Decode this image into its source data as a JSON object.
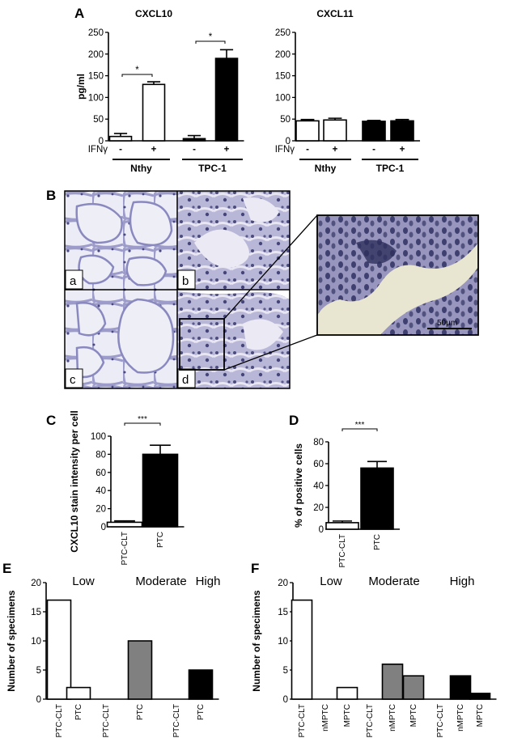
{
  "panel_labels": {
    "A": "A",
    "B": "B",
    "C": "C",
    "D": "D",
    "E": "E",
    "F": "F"
  },
  "micrograph": {
    "labels": [
      "a",
      "b",
      "c",
      "d"
    ],
    "scale_bar": "50µm",
    "colors": {
      "tissue": "#9d9dc9",
      "nucleus": "#3a3b6e",
      "background": "#e9e9f4",
      "stroma": "#c9c7e0"
    }
  },
  "chart_data": [
    {
      "id": "A-left",
      "type": "bar",
      "title": "CXCL10",
      "ylabel": "pg/ml",
      "ylim": [
        0,
        250
      ],
      "yticks": [
        0,
        50,
        100,
        150,
        200,
        250
      ],
      "categories": [
        "-",
        "+",
        "-",
        "+"
      ],
      "values": [
        10,
        130,
        5,
        190
      ],
      "errors": [
        7,
        6,
        7,
        20
      ],
      "fills": [
        "#ffffff",
        "#ffffff",
        "#000000",
        "#000000"
      ],
      "row_label": "IFNγ",
      "groups": [
        "Nthy",
        "TPC-1"
      ],
      "significance": "*"
    },
    {
      "id": "A-right",
      "type": "bar",
      "title": "CXCL11",
      "ylabel": "",
      "ylim": [
        0,
        250
      ],
      "yticks": [
        0,
        50,
        100,
        150,
        200,
        250
      ],
      "categories": [
        "-",
        "+",
        "-",
        "+"
      ],
      "values": [
        46,
        48,
        45,
        46
      ],
      "errors": [
        3,
        4,
        2,
        3
      ],
      "fills": [
        "#ffffff",
        "#ffffff",
        "#000000",
        "#000000"
      ],
      "row_label": "IFNγ",
      "groups": [
        "Nthy",
        "TPC-1"
      ]
    },
    {
      "id": "C",
      "type": "bar",
      "ylabel": "CXCL10 stain intensity per cell",
      "ylim": [
        0,
        100
      ],
      "yticks": [
        0,
        20,
        40,
        60,
        80,
        100
      ],
      "categories": [
        "PTC-CLT",
        "PTC"
      ],
      "values": [
        5,
        80
      ],
      "errors": [
        1.5,
        10
      ],
      "fills": [
        "#ffffff",
        "#000000"
      ],
      "significance": "***"
    },
    {
      "id": "D",
      "type": "bar",
      "ylabel": "% of positive cells",
      "ylim": [
        0,
        80
      ],
      "yticks": [
        0,
        20,
        40,
        60,
        80
      ],
      "categories": [
        "PTC-CLT",
        "PTC"
      ],
      "values": [
        6,
        56
      ],
      "errors": [
        1.5,
        6
      ],
      "fills": [
        "#ffffff",
        "#000000"
      ],
      "significance": "***"
    },
    {
      "id": "E",
      "type": "bar",
      "ylabel": "Number of specimens",
      "ylim": [
        0,
        20
      ],
      "yticks": [
        0,
        5,
        10,
        15,
        20
      ],
      "categories": [
        "PTC-CLT",
        "PTC",
        "PTC-CLT",
        "PTC",
        "PTC-CLT",
        "PTC"
      ],
      "values": [
        17,
        2,
        0,
        10,
        0,
        5
      ],
      "fills": [
        "#ffffff",
        "#ffffff",
        "#808080",
        "#808080",
        "#000000",
        "#000000"
      ],
      "groups": [
        "Low",
        "Moderate",
        "High"
      ]
    },
    {
      "id": "F",
      "type": "bar",
      "ylabel": "Number of specimens",
      "ylim": [
        0,
        20
      ],
      "yticks": [
        0,
        5,
        10,
        15,
        20
      ],
      "categories": [
        "PTC-CLT",
        "nMPTC",
        "MPTC",
        "PTC-CLT",
        "nMPTC",
        "MPTC",
        "PTC-CLT",
        "nMPTC",
        "MPTC"
      ],
      "values": [
        17,
        0,
        2,
        0,
        6,
        4,
        0,
        4,
        1
      ],
      "fills": [
        "#ffffff",
        "#ffffff",
        "#ffffff",
        "#808080",
        "#808080",
        "#808080",
        "#000000",
        "#000000",
        "#000000"
      ],
      "groups": [
        "Low",
        "Moderate",
        "High"
      ]
    }
  ]
}
